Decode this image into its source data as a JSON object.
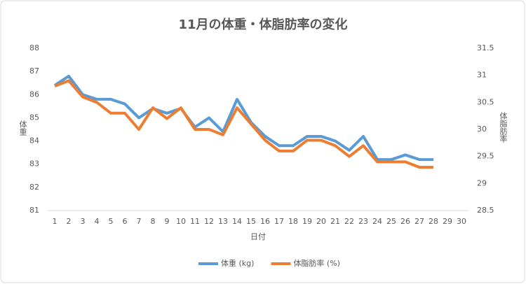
{
  "chart_data": {
    "type": "line",
    "title": "11月の体重・体脂肪率の変化",
    "x_label": "日付",
    "y_label": "体重",
    "y2_label": "体脂肪率",
    "categories": [
      "1",
      "2",
      "3",
      "4",
      "5",
      "6",
      "7",
      "8",
      "9",
      "10",
      "11",
      "12",
      "13",
      "14",
      "15",
      "16",
      "17",
      "18",
      "19",
      "20",
      "21",
      "22",
      "23",
      "24",
      "25",
      "26",
      "27",
      "28",
      "29",
      "30"
    ],
    "series": [
      {
        "name": "体重 (kg)",
        "color": "#5b9bd5",
        "axis": "y",
        "values": [
          86.4,
          86.8,
          86.0,
          85.8,
          85.8,
          85.6,
          85.0,
          85.4,
          85.2,
          85.4,
          84.6,
          85.0,
          84.4,
          85.8,
          84.8,
          84.2,
          83.8,
          83.8,
          84.2,
          84.2,
          84.0,
          83.6,
          84.2,
          83.2,
          83.2,
          83.4,
          83.2,
          83.2,
          null,
          null
        ]
      },
      {
        "name": "体脂肪率 (%)",
        "color": "#ed7d31",
        "axis": "y2",
        "values": [
          30.8,
          30.9,
          30.6,
          30.5,
          30.3,
          30.3,
          30.0,
          30.4,
          30.2,
          30.4,
          30.0,
          30.0,
          29.9,
          30.4,
          30.1,
          29.8,
          29.6,
          29.6,
          29.8,
          29.8,
          29.7,
          29.5,
          29.7,
          29.4,
          29.4,
          29.4,
          29.3,
          29.3,
          null,
          null
        ]
      }
    ],
    "ylim": [
      81,
      88
    ],
    "yticks": [
      81,
      82,
      83,
      84,
      85,
      86,
      87,
      88
    ],
    "y2lim": [
      28.5,
      31.5
    ],
    "y2ticks": [
      28.5,
      29,
      29.5,
      30,
      30.5,
      31,
      31.5
    ],
    "grid": false,
    "legend": "bottom"
  }
}
